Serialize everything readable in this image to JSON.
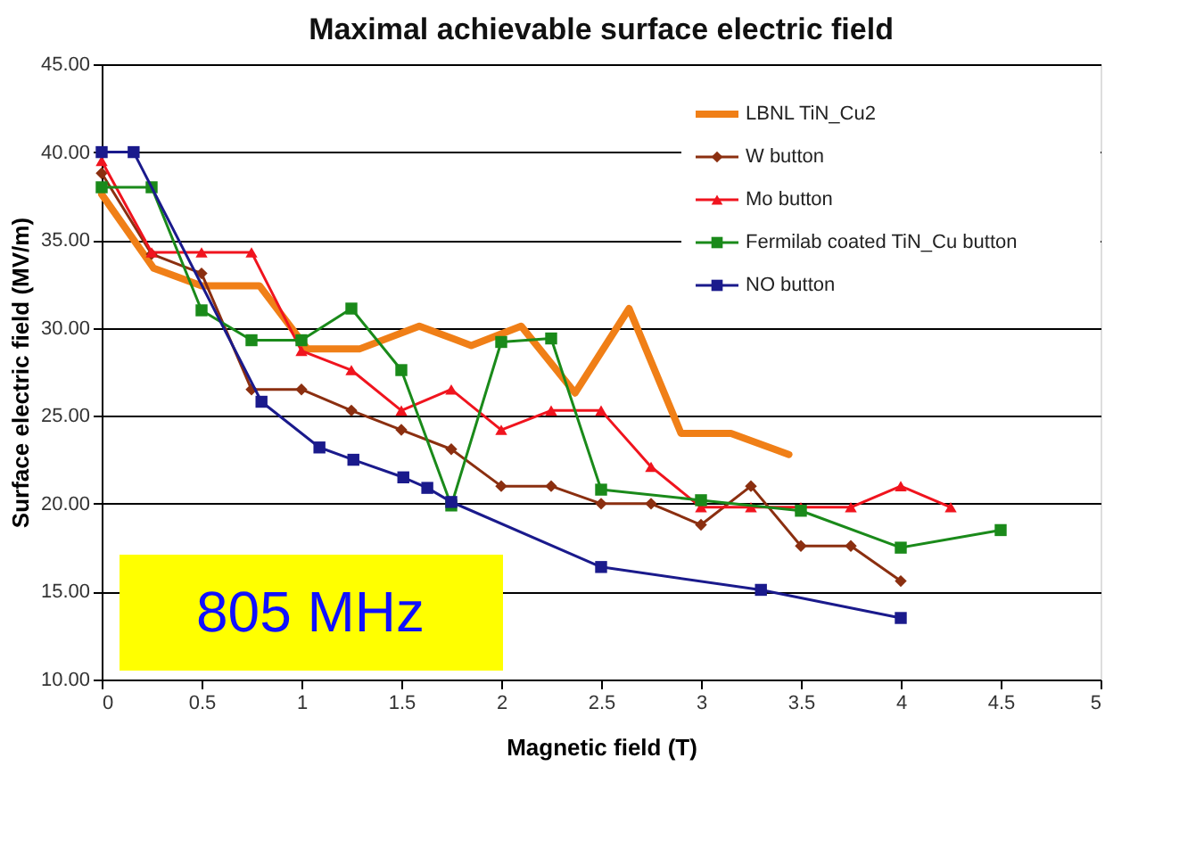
{
  "chart_data": {
    "type": "line",
    "title": "Maximal achievable surface electric field",
    "xlabel": "Magnetic field (T)",
    "ylabel": "Surface electric field (MV/m)",
    "xlim": [
      0,
      5
    ],
    "xticks": [
      0,
      0.5,
      1,
      1.5,
      2,
      2.5,
      3,
      3.5,
      4,
      4.5,
      5
    ],
    "ylim": [
      10,
      45
    ],
    "yticks": [
      {
        "value": 10,
        "label": "10.00"
      },
      {
        "value": 15,
        "label": "15.00"
      },
      {
        "value": 20,
        "label": "20.00"
      },
      {
        "value": 25,
        "label": "25.00"
      },
      {
        "value": 30,
        "label": "30.00"
      },
      {
        "value": 35,
        "label": "35.00"
      },
      {
        "value": 40,
        "label": "40.00"
      },
      {
        "value": 45,
        "label": "45.00"
      }
    ],
    "grid": "y",
    "legend": "top right",
    "annotations": [
      "805 MHz"
    ],
    "series": [
      {
        "name": "LBNL TiN_Cu2",
        "color": "#f07f17",
        "marker": "none",
        "x": [
          0,
          0.26,
          0.5,
          0.79,
          1.03,
          1.29,
          1.59,
          1.85,
          2.1,
          2.37,
          2.64,
          2.9,
          3.15,
          3.44
        ],
        "values": [
          37.6,
          33.4,
          32.4,
          32.4,
          28.8,
          28.8,
          30.1,
          29.0,
          30.1,
          26.3,
          31.1,
          24.0,
          24.0,
          22.8
        ]
      },
      {
        "name": "W button",
        "color": "#8b2f10",
        "marker": "diamond",
        "x": [
          0,
          0.25,
          0.5,
          0.75,
          1,
          1.25,
          1.5,
          1.75,
          2,
          2.25,
          2.5,
          2.75,
          3,
          3.25,
          3.5,
          3.75,
          4
        ],
        "values": [
          38.8,
          34.2,
          33.1,
          26.5,
          26.5,
          25.3,
          24.2,
          23.1,
          21.0,
          21.0,
          20.0,
          20.0,
          18.8,
          21.0,
          17.6,
          17.6,
          15.6
        ]
      },
      {
        "name": "Mo button",
        "color": "#f0141e",
        "marker": "triangle",
        "x": [
          0,
          0.25,
          0.5,
          0.75,
          1,
          1.25,
          1.5,
          1.75,
          2,
          2.25,
          2.5,
          2.75,
          3,
          3.25,
          3.5,
          3.75,
          4,
          4.25
        ],
        "values": [
          39.5,
          34.3,
          34.3,
          34.3,
          28.7,
          27.6,
          25.3,
          26.5,
          24.2,
          25.3,
          25.3,
          22.1,
          19.8,
          19.8,
          19.8,
          19.8,
          21.0,
          19.8
        ]
      },
      {
        "name": "Fermilab coated TiN_Cu button",
        "color": "#1a8a1a",
        "marker": "square",
        "x": [
          0,
          0.25,
          0.5,
          0.75,
          1,
          1.25,
          1.5,
          1.75,
          2,
          2.25,
          2.5,
          3,
          3.5,
          4,
          4.5
        ],
        "values": [
          38.0,
          38.0,
          31.0,
          29.3,
          29.3,
          31.1,
          27.6,
          19.9,
          29.2,
          29.4,
          20.8,
          20.2,
          19.6,
          17.5,
          18.5
        ]
      },
      {
        "name": "NO button",
        "color": "#1a1a8c",
        "marker": "square",
        "x": [
          0,
          0.16,
          0.8,
          1.09,
          1.26,
          1.51,
          1.63,
          1.75,
          2.5,
          3.3,
          4
        ],
        "values": [
          40.0,
          40.0,
          25.8,
          23.2,
          22.5,
          21.5,
          20.9,
          20.1,
          16.4,
          15.1,
          13.5
        ]
      }
    ]
  }
}
